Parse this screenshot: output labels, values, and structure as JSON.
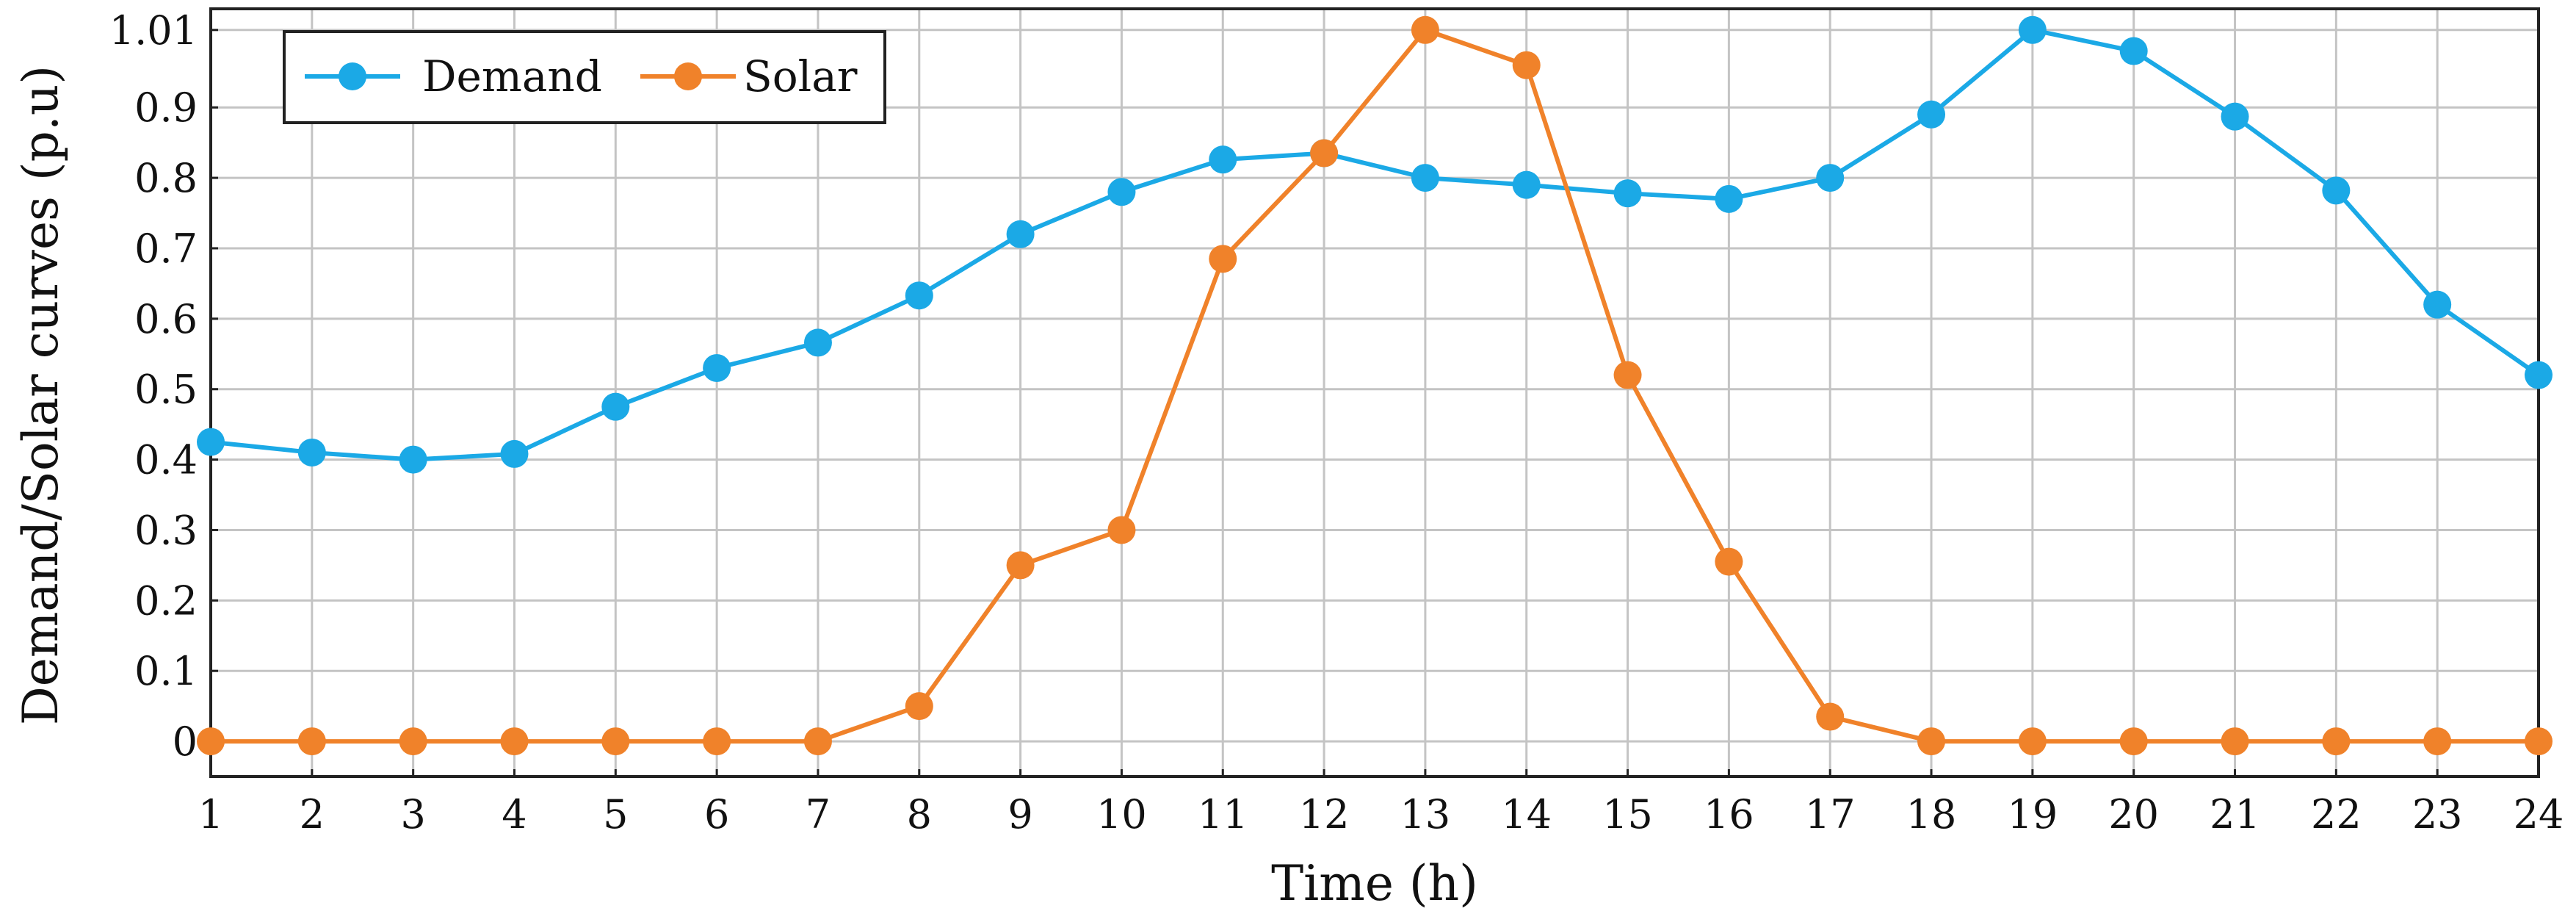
{
  "chart_data": {
    "type": "line",
    "title": "",
    "xlabel": "Time (h)",
    "ylabel": "Demand/Solar curves (p.u)",
    "x": [
      1,
      2,
      3,
      4,
      5,
      6,
      7,
      8,
      9,
      10,
      11,
      12,
      13,
      14,
      15,
      16,
      17,
      18,
      19,
      20,
      21,
      22,
      23,
      24
    ],
    "xlim": [
      1,
      24
    ],
    "ylim": [
      -0.05,
      1.04
    ],
    "x_ticks": [
      "1",
      "2",
      "3",
      "4",
      "5",
      "6",
      "7",
      "8",
      "9",
      "10",
      "11",
      "12",
      "13",
      "14",
      "15",
      "16",
      "17",
      "18",
      "19",
      "20",
      "21",
      "22",
      "23",
      "24"
    ],
    "y_ticks": [
      {
        "value": 0,
        "label": "0"
      },
      {
        "value": 0.1,
        "label": "0.1"
      },
      {
        "value": 0.2,
        "label": "0.2"
      },
      {
        "value": 0.3,
        "label": "0.3"
      },
      {
        "value": 0.4,
        "label": "0.4"
      },
      {
        "value": 0.5,
        "label": "0.5"
      },
      {
        "value": 0.6,
        "label": "0.6"
      },
      {
        "value": 0.7,
        "label": "0.7"
      },
      {
        "value": 0.8,
        "label": "0.8"
      },
      {
        "value": 0.9,
        "label": "0.9"
      },
      {
        "value": 1.01,
        "label": "1.01"
      }
    ],
    "grid": true,
    "legend_position": "top-left",
    "series": [
      {
        "name": "Demand",
        "color": "#1ba9e6",
        "values": [
          0.425,
          0.41,
          0.4,
          0.408,
          0.475,
          0.53,
          0.566,
          0.633,
          0.72,
          0.78,
          0.826,
          0.835,
          0.8,
          0.79,
          0.778,
          0.77,
          0.8,
          0.89,
          1.01,
          0.98,
          0.887,
          0.782,
          0.62,
          0.52
        ]
      },
      {
        "name": "Solar",
        "color": "#f0822a",
        "values": [
          0,
          0,
          0,
          0,
          0,
          0,
          0,
          0.05,
          0.25,
          0.3,
          0.685,
          0.835,
          1.01,
          0.96,
          0.52,
          0.255,
          0.035,
          0,
          0,
          0,
          0,
          0,
          0,
          0
        ]
      }
    ]
  }
}
